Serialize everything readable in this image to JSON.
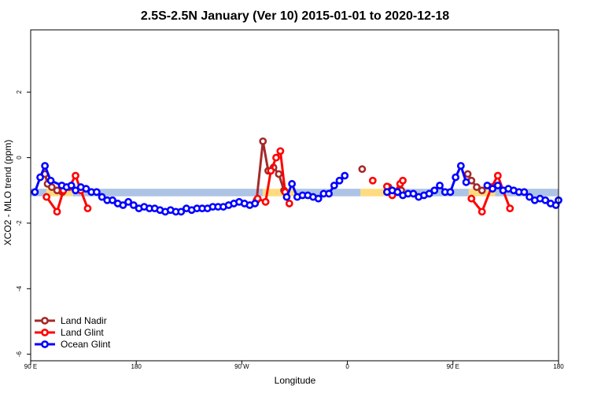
{
  "chart_data": {
    "type": "line",
    "title": "2.5S-2.5N January (Ver 10)   2015-01-01 to 2020-12-18",
    "xlabel": "Longitude",
    "ylabel": "XCO2 - MLO trend (ppm)",
    "xlim": [
      0,
      100
    ],
    "ylim": [
      -6.2,
      3.9
    ],
    "x_ticks": [
      {
        "pos": 0,
        "label": "90 E"
      },
      {
        "pos": 20,
        "label": "180"
      },
      {
        "pos": 40,
        "label": "90 W"
      },
      {
        "pos": 60,
        "label": "0"
      },
      {
        "pos": 80,
        "label": "90 E"
      },
      {
        "pos": 100,
        "label": "180"
      }
    ],
    "y_ticks": [
      2,
      0,
      -2,
      -4,
      -6
    ],
    "legend": {
      "position": "bottom-left"
    },
    "band": {
      "y": [
        -1.18,
        -0.95
      ],
      "segments": [
        {
          "x": [
            0,
            3
          ],
          "color": "#aec4e5"
        },
        {
          "x": [
            3,
            8
          ],
          "color": "#ffdb80"
        },
        {
          "x": [
            8,
            44
          ],
          "color": "#aec4e5"
        },
        {
          "x": [
            44,
            50
          ],
          "color": "#ffdb80"
        },
        {
          "x": [
            50,
            62.5
          ],
          "color": "#aec4e5"
        },
        {
          "x": [
            62.5,
            67.5
          ],
          "color": "#ffdb80"
        },
        {
          "x": [
            67.5,
            83
          ],
          "color": "#aec4e5"
        },
        {
          "x": [
            83,
            88
          ],
          "color": "#ffdb80"
        },
        {
          "x": [
            88,
            100
          ],
          "color": "#aec4e5"
        }
      ]
    },
    "series": [
      {
        "name": "Land Nadir",
        "color": "#a52a2a",
        "segments": [
          [
            [
              2.7,
              -0.5
            ],
            [
              3.2,
              -0.8
            ],
            [
              4.0,
              -0.9
            ],
            [
              5.0,
              -1.0
            ],
            [
              6.0,
              -1.05
            ]
          ],
          [
            [
              42.8,
              -1.3
            ],
            [
              44.0,
              0.5
            ],
            [
              45.0,
              -0.4
            ],
            [
              46.0,
              -0.3
            ],
            [
              47.0,
              -0.5
            ],
            [
              48.0,
              -1.0
            ]
          ],
          [
            [
              62.8,
              -0.35
            ]
          ],
          [
            [
              67.8,
              -0.9
            ],
            [
              69.0,
              -1.05
            ],
            [
              70.2,
              -1.0
            ]
          ],
          [
            [
              82.8,
              -0.5
            ],
            [
              83.5,
              -0.7
            ],
            [
              84.5,
              -0.9
            ],
            [
              85.5,
              -1.0
            ]
          ]
        ]
      },
      {
        "name": "Land Glint",
        "color": "#ff0000",
        "segments": [
          [
            [
              3.0,
              -1.2
            ],
            [
              5.0,
              -1.65
            ],
            [
              6.2,
              -1.0
            ],
            [
              7.3,
              -0.9
            ],
            [
              8.5,
              -0.55
            ],
            [
              9.5,
              -1.0
            ],
            [
              10.8,
              -1.55
            ]
          ],
          [
            [
              43.0,
              -1.25
            ],
            [
              44.5,
              -1.35
            ],
            [
              45.5,
              -0.4
            ],
            [
              46.5,
              -0.0
            ],
            [
              47.3,
              0.2
            ],
            [
              48.2,
              -1.05
            ],
            [
              49.0,
              -1.4
            ]
          ],
          [
            [
              64.8,
              -0.7
            ]
          ],
          [
            [
              67.5,
              -0.88
            ],
            [
              68.5,
              -1.15
            ],
            [
              70.0,
              -0.8
            ],
            [
              70.5,
              -0.7
            ]
          ],
          [
            [
              83.5,
              -1.25
            ],
            [
              85.5,
              -1.65
            ],
            [
              87.3,
              -0.9
            ],
            [
              88.5,
              -0.55
            ],
            [
              89.5,
              -1.0
            ],
            [
              90.8,
              -1.55
            ]
          ]
        ]
      },
      {
        "name": "Ocean Glint",
        "color": "#0000ff",
        "segments": [
          [
            [
              0.8,
              -1.05
            ],
            [
              1.8,
              -0.6
            ],
            [
              2.7,
              -0.25
            ],
            [
              3.8,
              -0.7
            ],
            [
              5.9,
              -0.85
            ],
            [
              6.8,
              -0.9
            ],
            [
              7.7,
              -0.85
            ],
            [
              8.5,
              -1.0
            ],
            [
              9.5,
              -0.9
            ],
            [
              10.5,
              -0.95
            ],
            [
              11.5,
              -1.05
            ],
            [
              12.5,
              -1.05
            ],
            [
              13.5,
              -1.2
            ],
            [
              14.5,
              -1.3
            ],
            [
              15.5,
              -1.3
            ],
            [
              16.5,
              -1.4
            ],
            [
              17.5,
              -1.45
            ],
            [
              18.5,
              -1.35
            ],
            [
              19.5,
              -1.45
            ],
            [
              20.5,
              -1.55
            ],
            [
              21.5,
              -1.5
            ],
            [
              22.5,
              -1.55
            ],
            [
              23.5,
              -1.55
            ],
            [
              24.5,
              -1.6
            ],
            [
              25.5,
              -1.65
            ],
            [
              26.5,
              -1.6
            ],
            [
              27.5,
              -1.65
            ],
            [
              28.5,
              -1.65
            ],
            [
              29.5,
              -1.55
            ],
            [
              30.5,
              -1.6
            ],
            [
              31.5,
              -1.55
            ],
            [
              32.5,
              -1.55
            ],
            [
              33.5,
              -1.55
            ],
            [
              34.5,
              -1.5
            ],
            [
              35.5,
              -1.5
            ],
            [
              36.5,
              -1.5
            ],
            [
              37.5,
              -1.45
            ],
            [
              38.5,
              -1.4
            ],
            [
              39.5,
              -1.35
            ],
            [
              40.5,
              -1.4
            ],
            [
              41.5,
              -1.45
            ],
            [
              42.5,
              -1.4
            ]
          ],
          [
            [
              48.5,
              -1.2
            ],
            [
              49.5,
              -0.8
            ],
            [
              50.5,
              -1.2
            ],
            [
              51.5,
              -1.15
            ],
            [
              52.5,
              -1.15
            ],
            [
              53.5,
              -1.2
            ],
            [
              54.5,
              -1.25
            ],
            [
              55.5,
              -1.1
            ],
            [
              56.5,
              -1.1
            ],
            [
              57.5,
              -0.85
            ],
            [
              58.5,
              -0.7
            ],
            [
              59.5,
              -0.55
            ]
          ],
          [
            [
              67.5,
              -1.05
            ],
            [
              68.5,
              -1.0
            ],
            [
              69.5,
              -1.05
            ],
            [
              70.5,
              -1.15
            ],
            [
              71.5,
              -1.1
            ],
            [
              72.5,
              -1.1
            ],
            [
              73.5,
              -1.2
            ],
            [
              74.5,
              -1.15
            ],
            [
              75.5,
              -1.1
            ],
            [
              76.5,
              -1.0
            ],
            [
              77.5,
              -0.85
            ],
            [
              78.5,
              -1.05
            ],
            [
              79.5,
              -1.05
            ],
            [
              80.5,
              -0.6
            ],
            [
              81.5,
              -0.25
            ],
            [
              82.5,
              -0.75
            ]
          ],
          [
            [
              86.5,
              -0.85
            ],
            [
              87.5,
              -0.95
            ],
            [
              88.5,
              -0.85
            ],
            [
              89.5,
              -1.0
            ],
            [
              90.5,
              -0.95
            ],
            [
              91.5,
              -1.0
            ],
            [
              92.5,
              -1.05
            ],
            [
              93.5,
              -1.05
            ],
            [
              94.5,
              -1.2
            ],
            [
              95.5,
              -1.3
            ],
            [
              96.5,
              -1.25
            ],
            [
              97.5,
              -1.3
            ],
            [
              98.5,
              -1.4
            ],
            [
              99.5,
              -1.45
            ],
            [
              100.0,
              -1.3
            ]
          ]
        ]
      }
    ]
  }
}
